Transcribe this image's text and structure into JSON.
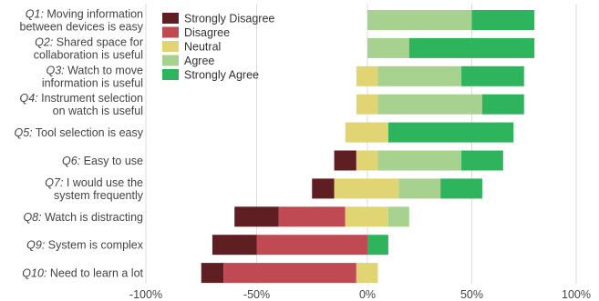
{
  "chart_data": {
    "type": "bar",
    "orientation": "horizontal",
    "stacked": "diverging",
    "questions": [
      {
        "id": "Q1:",
        "text": "Moving information between devices is easy"
      },
      {
        "id": "Q2:",
        "text": "Shared space for collaboration is useful"
      },
      {
        "id": "Q3:",
        "text": "Watch to move information is useful"
      },
      {
        "id": "Q4:",
        "text": "Instrument selection on watch is useful"
      },
      {
        "id": "Q5:",
        "text": "Tool selection is easy"
      },
      {
        "id": "Q6:",
        "text": "Easy to use"
      },
      {
        "id": "Q7:",
        "text": "I would use the system frequently"
      },
      {
        "id": "Q8:",
        "text": "Watch is distracting"
      },
      {
        "id": "Q9:",
        "text": "System is complex"
      },
      {
        "id": "Q10:",
        "text": "Need to learn a lot"
      }
    ],
    "series": [
      {
        "name": "Strongly Disagree",
        "color": "#5e1e22",
        "values": [
          0,
          0,
          0,
          0,
          0,
          10,
          10,
          20,
          20,
          10
        ]
      },
      {
        "name": "Disagree",
        "color": "#c04a54",
        "values": [
          0,
          0,
          0,
          0,
          0,
          0,
          0,
          30,
          50,
          60
        ]
      },
      {
        "name": "Neutral",
        "color": "#e1d473",
        "values": [
          0,
          0,
          10,
          10,
          20,
          10,
          30,
          20,
          0,
          10
        ]
      },
      {
        "name": "Agree",
        "color": "#a7d18f",
        "values": [
          50,
          20,
          40,
          50,
          0,
          40,
          20,
          10,
          0,
          0
        ]
      },
      {
        "name": "Strongly Agree",
        "color": "#2db45c",
        "values": [
          30,
          60,
          30,
          20,
          60,
          20,
          20,
          0,
          10,
          0
        ]
      }
    ],
    "xlim": [
      -100,
      100
    ],
    "xticks": [
      "-100%",
      "-50%",
      "0%",
      "50%",
      "100%"
    ],
    "legend_position": "top-left",
    "grid": "vertical"
  }
}
